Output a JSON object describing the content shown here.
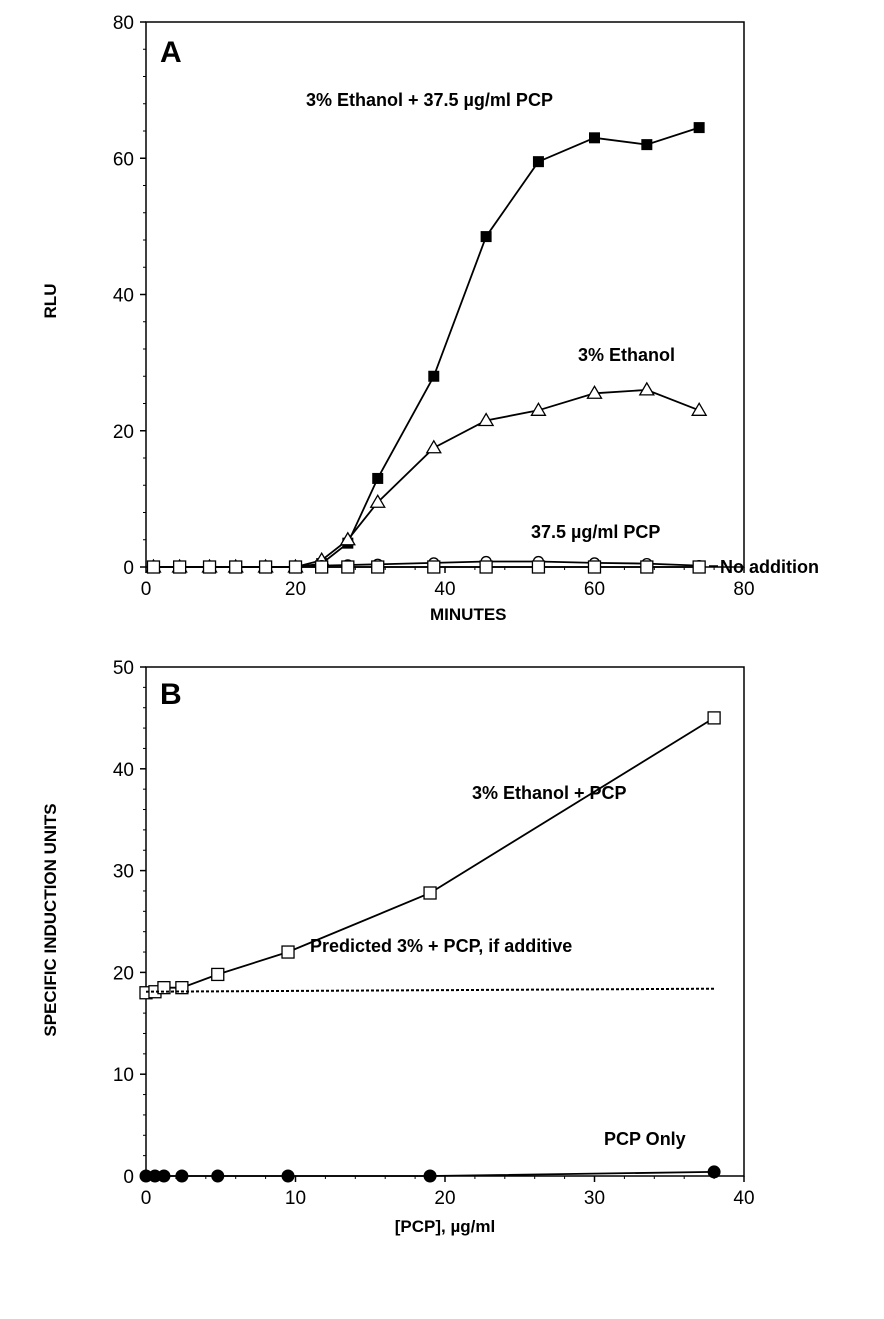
{
  "chart_data": [
    {
      "panel": "A",
      "type": "line",
      "xlabel": "MINUTES",
      "ylabel": "RLU",
      "xlim": [
        0,
        80
      ],
      "ylim": [
        0,
        80
      ],
      "xticks": [
        0,
        20,
        40,
        60,
        80
      ],
      "yticks": [
        0,
        20,
        40,
        60,
        80
      ],
      "series": [
        {
          "name": "3% Ethanol + 37.5 µg/ml PCP",
          "marker": "filled-square",
          "x": [
            1,
            4.5,
            8.5,
            12,
            16,
            20,
            23.5,
            27,
            31,
            38.5,
            45.5,
            52.5,
            60,
            67,
            74
          ],
          "y": [
            0,
            0,
            0,
            0,
            0,
            0,
            0.5,
            3.5,
            13,
            28,
            48.5,
            59.5,
            63,
            62,
            64.5
          ]
        },
        {
          "name": "3% Ethanol",
          "marker": "open-triangle",
          "x": [
            1,
            4.5,
            8.5,
            12,
            16,
            20,
            23.5,
            27,
            31,
            38.5,
            45.5,
            52.5,
            60,
            67,
            74
          ],
          "y": [
            0,
            0,
            0,
            0,
            0,
            0,
            1,
            4,
            9.5,
            17.5,
            21.5,
            23,
            25.5,
            26,
            23
          ]
        },
        {
          "name": "37.5 µg/ml PCP",
          "marker": "open-circle",
          "x": [
            1,
            4.5,
            8.5,
            12,
            16,
            20,
            23.5,
            27,
            31,
            38.5,
            45.5,
            52.5,
            60,
            67,
            74
          ],
          "y": [
            0,
            0,
            0,
            0,
            0,
            0,
            0.2,
            0.3,
            0.4,
            0.6,
            0.8,
            0.8,
            0.6,
            0.5,
            0.2
          ]
        },
        {
          "name": "No addition",
          "marker": "open-square",
          "x": [
            1,
            4.5,
            8.5,
            12,
            16,
            20,
            23.5,
            27,
            31,
            38.5,
            45.5,
            52.5,
            60,
            67,
            74
          ],
          "y": [
            0,
            0,
            0,
            0,
            0,
            0,
            0,
            0,
            0,
            0,
            0,
            0,
            0,
            0,
            0
          ]
        }
      ]
    },
    {
      "panel": "B",
      "type": "line",
      "xlabel": "[PCP], µg/ml",
      "ylabel": "SPECIFIC INDUCTION UNITS",
      "xlim": [
        0,
        40
      ],
      "ylim": [
        0,
        50
      ],
      "xticks": [
        0,
        10,
        20,
        30,
        40
      ],
      "yticks": [
        0,
        10,
        20,
        30,
        40,
        50
      ],
      "series": [
        {
          "name": "3% Ethanol + PCP",
          "marker": "open-square",
          "x": [
            0,
            0.6,
            1.2,
            2.4,
            4.8,
            9.5,
            19,
            38
          ],
          "y": [
            18,
            18.1,
            18.5,
            18.5,
            19.8,
            22,
            27.8,
            45
          ]
        },
        {
          "name": "Predicted 3% + PCP, if additive",
          "marker": "none",
          "dashed": true,
          "x": [
            0,
            38
          ],
          "y": [
            18.1,
            18.4
          ]
        },
        {
          "name": "PCP Only",
          "marker": "filled-circle",
          "x": [
            0,
            0.6,
            1.2,
            2.4,
            4.8,
            9.5,
            19,
            38
          ],
          "y": [
            0,
            0,
            0,
            0,
            0,
            0,
            0,
            0.4
          ]
        }
      ]
    }
  ],
  "labels": {
    "panel_a": "A",
    "panel_b": "B",
    "a_series1": "3%  Ethanol  +  37.5  µg/ml  PCP",
    "a_series2": "3%  Ethanol",
    "a_series3": "37.5  µg/ml  PCP",
    "a_series4": "No  addition",
    "b_series1": "3% Ethanol + PCP",
    "b_series2": "Predicted  3%  +  PCP,  if  additive",
    "b_series3": "PCP Only",
    "a_xlabel": "MINUTES",
    "a_ylabel": "RLU",
    "b_xlabel": "[PCP],  µg/ml",
    "b_ylabel": "SPECIFIC INDUCTION UNITS"
  }
}
